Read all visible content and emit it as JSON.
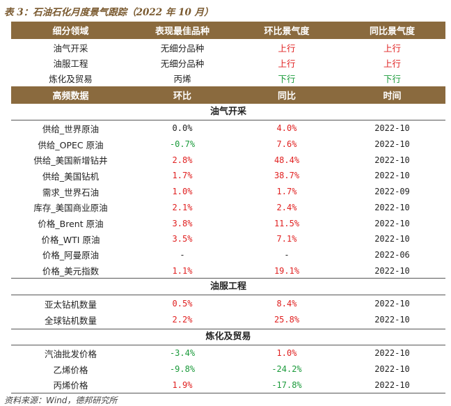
{
  "title": "表 3：石油石化月度景气跟踪（2022 年 10 月）",
  "sector_table": {
    "headers": [
      "细分领域",
      "表现最佳品种",
      "环比景气度",
      "同比景气度"
    ],
    "rows": [
      {
        "sector": "油气开采",
        "best": "无细分品种",
        "mom": "上行",
        "yoy": "上行",
        "mom_dir": "up",
        "yoy_dir": "up"
      },
      {
        "sector": "油服工程",
        "best": "无细分品种",
        "mom": "上行",
        "yoy": "上行",
        "mom_dir": "up",
        "yoy_dir": "up"
      },
      {
        "sector": "炼化及贸易",
        "best": "丙烯",
        "mom": "下行",
        "yoy": "下行",
        "mom_dir": "down",
        "yoy_dir": "down"
      }
    ]
  },
  "hf_table": {
    "headers": [
      "高频数据",
      "环比",
      "同比",
      "时间"
    ],
    "sections": [
      {
        "name": "油气开采",
        "rows": [
          {
            "item": "供给_世界原油",
            "mom": "0.0%",
            "yoy": "4.0%",
            "date": "2022-10",
            "mom_dir": "flat",
            "yoy_dir": "up"
          },
          {
            "item": "供给_OPEC 原油",
            "mom": "-0.7%",
            "yoy": "7.6%",
            "date": "2022-10",
            "mom_dir": "down",
            "yoy_dir": "up"
          },
          {
            "item": "供给_美国新增钻井",
            "mom": "2.8%",
            "yoy": "48.4%",
            "date": "2022-10",
            "mom_dir": "up",
            "yoy_dir": "up"
          },
          {
            "item": "供给_美国钻机",
            "mom": "1.7%",
            "yoy": "38.7%",
            "date": "2022-10",
            "mom_dir": "up",
            "yoy_dir": "up"
          },
          {
            "item": "需求_世界石油",
            "mom": "1.0%",
            "yoy": "1.7%",
            "date": "2022-09",
            "mom_dir": "up",
            "yoy_dir": "up"
          },
          {
            "item": "库存_美国商业原油",
            "mom": "2.1%",
            "yoy": "2.4%",
            "date": "2022-10",
            "mom_dir": "up",
            "yoy_dir": "up"
          },
          {
            "item": "价格_Brent 原油",
            "mom": "3.8%",
            "yoy": "11.5%",
            "date": "2022-10",
            "mom_dir": "up",
            "yoy_dir": "up"
          },
          {
            "item": "价格_WTI 原油",
            "mom": "3.5%",
            "yoy": "7.1%",
            "date": "2022-10",
            "mom_dir": "up",
            "yoy_dir": "up"
          },
          {
            "item": "价格_阿曼原油",
            "mom": "-",
            "yoy": "-",
            "date": "2022-06",
            "mom_dir": "flat",
            "yoy_dir": "flat"
          },
          {
            "item": "价格_美元指数",
            "mom": "1.1%",
            "yoy": "19.1%",
            "date": "2022-10",
            "mom_dir": "up",
            "yoy_dir": "up"
          }
        ]
      },
      {
        "name": "油服工程",
        "rows": [
          {
            "item": "亚太钻机数量",
            "mom": "0.5%",
            "yoy": "8.4%",
            "date": "2022-10",
            "mom_dir": "up",
            "yoy_dir": "up"
          },
          {
            "item": "全球钻机数量",
            "mom": "2.2%",
            "yoy": "25.8%",
            "date": "2022-10",
            "mom_dir": "up",
            "yoy_dir": "up"
          }
        ]
      },
      {
        "name": "炼化及贸易",
        "rows": [
          {
            "item": "汽油批发价格",
            "mom": "-3.4%",
            "yoy": "1.0%",
            "date": "2022-10",
            "mom_dir": "down",
            "yoy_dir": "up"
          },
          {
            "item": "乙烯价格",
            "mom": "-9.8%",
            "yoy": "-24.2%",
            "date": "2022-10",
            "mom_dir": "down",
            "yoy_dir": "down"
          },
          {
            "item": "丙烯价格",
            "mom": "1.9%",
            "yoy": "-17.8%",
            "date": "2022-10",
            "mom_dir": "up",
            "yoy_dir": "down"
          }
        ]
      }
    ]
  },
  "source": "资料来源：Wind，德邦研究所",
  "colors": {
    "header_bg": "#8a6a3e",
    "up": "#e02020",
    "down": "#1a9a3a"
  }
}
